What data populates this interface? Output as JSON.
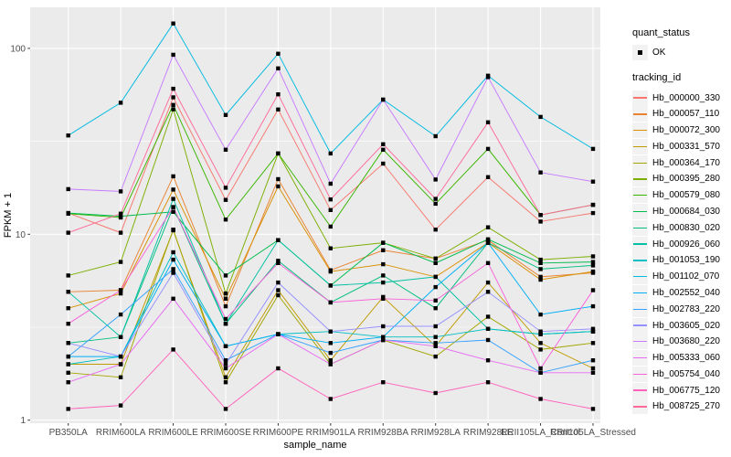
{
  "figure": {
    "background": "#FFFFFF",
    "panel_background": "#EBEBEB",
    "grid_color": "#FFFFFF",
    "axis_text_color": "#4D4D4D",
    "axis_title_color": "#000000",
    "point_color": "#000000"
  },
  "legend": {
    "quant_status_title": "quant_status",
    "ok_label": "OK",
    "tracking_id_title": "tracking_id"
  },
  "axes": {
    "x_title": "sample_name",
    "y_title": "FPKM + 1",
    "y_tick_labels": [
      "1",
      "10",
      "100"
    ]
  },
  "chart_data": {
    "type": "line",
    "title": "",
    "xlabel": "sample_name",
    "ylabel": "FPKM + 1",
    "y_scale": "log10",
    "y_ticks": [
      1,
      10,
      100
    ],
    "y_minor": [
      3.1623,
      31.623
    ],
    "ylim": [
      1,
      166
    ],
    "grid": true,
    "legend_position": "right",
    "point_shape": "filled-black-square",
    "categories": [
      "PB350LA",
      "RRIM600LA",
      "RRIM600LE",
      "RRIM600SE",
      "RRIM600PE",
      "RRIM901LA",
      "RRIM928BA",
      "RRIM928LA",
      "RRIM928LE",
      "RRII105LA_Control",
      "RRII105LA_Stressed"
    ],
    "series": [
      {
        "name": "Hb_000000_330",
        "color": "#F8766D",
        "values": [
          13.0,
          10.2,
          54.5,
          15.3,
          46.9,
          13.5,
          24.0,
          10.6,
          20.3,
          11.7,
          13.0
        ]
      },
      {
        "name": "Hb_000057_110",
        "color": "#EA8331",
        "values": [
          4.9,
          5.0,
          20.5,
          4.1,
          19.8,
          6.4,
          8.2,
          7.4,
          9.3,
          5.9,
          6.2
        ]
      },
      {
        "name": "Hb_000072_300",
        "color": "#D89000",
        "values": [
          4.0,
          4.8,
          17.4,
          4.5,
          18.1,
          6.3,
          6.9,
          5.9,
          9.0,
          5.7,
          6.3
        ]
      },
      {
        "name": "Hb_000331_570",
        "color": "#C09B00",
        "values": [
          2.0,
          2.0,
          10.5,
          1.7,
          5.0,
          2.1,
          4.6,
          2.5,
          5.5,
          2.6,
          1.9
        ]
      },
      {
        "name": "Hb_000364_170",
        "color": "#A3A500",
        "values": [
          1.8,
          1.7,
          10.6,
          1.6,
          4.7,
          2.0,
          2.7,
          2.2,
          3.6,
          2.4,
          2.6
        ]
      },
      {
        "name": "Hb_000395_280",
        "color": "#7CAE00",
        "values": [
          6.0,
          7.1,
          47.0,
          4.8,
          27.2,
          8.4,
          9.0,
          7.4,
          10.9,
          7.3,
          7.6
        ]
      },
      {
        "name": "Hb_000579_080",
        "color": "#39B600",
        "values": [
          12.9,
          12.3,
          49.6,
          12.0,
          27.2,
          11.0,
          28.5,
          14.6,
          28.8,
          12.7,
          14.4
        ]
      },
      {
        "name": "Hb_000684_030",
        "color": "#00BB4E",
        "values": [
          13.0,
          12.5,
          13.2,
          6.0,
          9.3,
          5.3,
          9.0,
          7.0,
          9.4,
          7.0,
          7.1
        ]
      },
      {
        "name": "Hb_000830_020",
        "color": "#00BF7D",
        "values": [
          2.6,
          2.8,
          14.0,
          3.3,
          7.2,
          4.3,
          6.0,
          4.0,
          9.0,
          6.5,
          6.8
        ]
      },
      {
        "name": "Hb_000926_060",
        "color": "#00C1A3",
        "values": [
          4.9,
          2.8,
          15.5,
          3.3,
          9.3,
          5.3,
          5.5,
          5.9,
          3.1,
          2.9,
          3.0
        ]
      },
      {
        "name": "Hb_001053_190",
        "color": "#00BFC4",
        "values": [
          2.0,
          2.2,
          8.0,
          2.5,
          2.9,
          3.0,
          2.8,
          2.8,
          3.1,
          2.9,
          3.0
        ]
      },
      {
        "name": "Hb_001102_070",
        "color": "#00BAE0",
        "values": [
          34.0,
          51.0,
          136.0,
          43.8,
          93.5,
          27.2,
          53.0,
          33.7,
          71.3,
          42.8,
          28.8
        ]
      },
      {
        "name": "Hb_002552_040",
        "color": "#00B0F6",
        "values": [
          2.2,
          2.2,
          7.3,
          2.5,
          2.9,
          2.6,
          2.8,
          5.2,
          9.0,
          3.7,
          4.1
        ]
      },
      {
        "name": "Hb_002783_220",
        "color": "#35A2FF",
        "values": [
          2.2,
          3.7,
          6.5,
          2.1,
          2.9,
          2.3,
          2.7,
          2.6,
          2.7,
          1.8,
          2.1
        ]
      },
      {
        "name": "Hb_003605_020",
        "color": "#9590FF",
        "values": [
          2.6,
          2.2,
          6.2,
          2.0,
          5.5,
          3.0,
          3.2,
          3.2,
          4.9,
          3.0,
          3.1
        ]
      },
      {
        "name": "Hb_003680_220",
        "color": "#C77CFF",
        "values": [
          17.5,
          17.0,
          92.4,
          28.5,
          78.0,
          18.7,
          53.0,
          19.7,
          70.0,
          21.5,
          19.2
        ]
      },
      {
        "name": "Hb_005333_060",
        "color": "#E76BF3",
        "values": [
          1.6,
          2.0,
          4.5,
          1.9,
          2.9,
          2.0,
          2.7,
          2.5,
          2.1,
          1.8,
          1.8
        ]
      },
      {
        "name": "Hb_005754_040",
        "color": "#FA62DB",
        "values": [
          3.3,
          5.0,
          14.0,
          3.5,
          7.0,
          4.3,
          4.5,
          4.4,
          7.0,
          1.9,
          5.0
        ]
      },
      {
        "name": "Hb_006775_120",
        "color": "#FF62BC",
        "values": [
          1.15,
          1.2,
          2.4,
          1.15,
          1.9,
          1.3,
          1.6,
          1.4,
          1.6,
          1.3,
          1.15
        ]
      },
      {
        "name": "Hb_008725_270",
        "color": "#FF6A98",
        "values": [
          10.2,
          12.9,
          60.6,
          17.8,
          56.6,
          15.4,
          30.5,
          15.5,
          40.0,
          12.7,
          14.4
        ]
      }
    ]
  }
}
